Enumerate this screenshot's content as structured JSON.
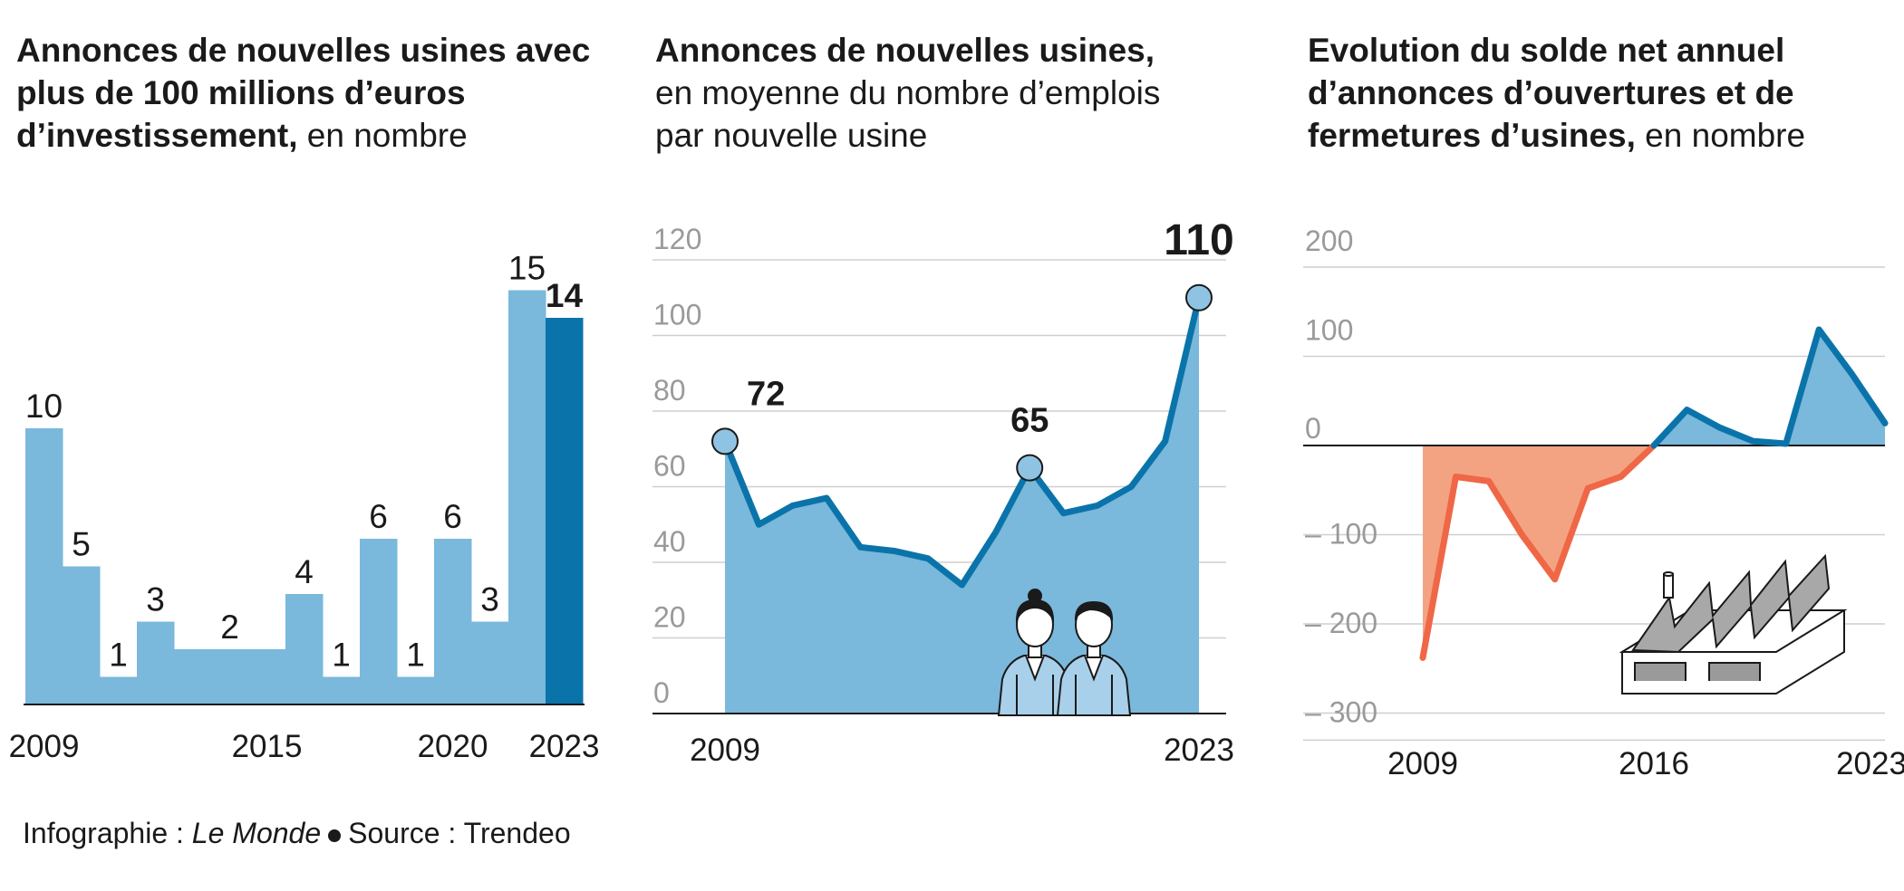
{
  "colors": {
    "bar_light": "#7ab8dc",
    "bar_dark": "#0a74aa",
    "line_blue": "#0a74aa",
    "area_blue": "#7ab8dc",
    "marker_fill": "#8ec3e3",
    "negative_line": "#ef6746",
    "negative_area": "#f3a382",
    "grid": "#cfcfcf",
    "axis": "#1a1a1a",
    "tick_text": "#9a9a9a"
  },
  "charts": {
    "bars": {
      "title_bold": "Annonces de nouvelles usines avec plus de 100 millions d’euros d’investissement,",
      "title_normal": " en nombre",
      "chart_data": {
        "type": "bar",
        "categories": [
          "2009",
          "2010",
          "2011",
          "2012",
          "2013",
          "2014",
          "2015",
          "2016",
          "2017",
          "2018",
          "2019",
          "2020",
          "2021",
          "2022",
          "2023"
        ],
        "values": [
          10,
          5,
          1,
          3,
          2,
          2,
          2,
          4,
          1,
          6,
          1,
          6,
          3,
          15,
          14
        ],
        "value_labels": [
          "10",
          "5",
          "1",
          "3",
          "",
          "2",
          "",
          "4",
          "1",
          "6",
          "1",
          "6",
          "3",
          "15",
          "14"
        ],
        "x_tick_labels": [
          {
            "category": "2009",
            "label": "2009"
          },
          {
            "category": "2015",
            "label": "2015"
          },
          {
            "category": "2020",
            "label": "2020"
          },
          {
            "category": "2023",
            "label": "2023"
          }
        ],
        "highlight": "2023",
        "ylim": [
          0,
          16
        ],
        "xlabel": "",
        "ylabel": ""
      }
    },
    "jobs": {
      "title_bold": "Annonces de nouvelles usines,",
      "title_normal": "en moyenne du nombre d’emplois par nouvelle usine",
      "chart_data": {
        "type": "area",
        "x": [
          2009,
          2010,
          2011,
          2012,
          2013,
          2014,
          2015,
          2016,
          2017,
          2018,
          2019,
          2020,
          2021,
          2022,
          2023
        ],
        "y": [
          72,
          50,
          55,
          57,
          44,
          43,
          41,
          34,
          48,
          65,
          53,
          55,
          60,
          72,
          110
        ],
        "y_ticks": [
          "120",
          "100",
          "80",
          "60",
          "40",
          "20",
          "0"
        ],
        "y_tick_values": [
          120,
          100,
          80,
          60,
          40,
          20,
          0
        ],
        "ylim": [
          0,
          120
        ],
        "annotations": [
          {
            "x": 2009,
            "y": 72,
            "label": "72"
          },
          {
            "x": 2018,
            "y": 65,
            "label": "65"
          },
          {
            "x": 2023,
            "y": 110,
            "label": "110"
          }
        ],
        "x_tick_labels": [
          {
            "x": 2009,
            "label": "2009"
          },
          {
            "x": 2023,
            "label": "2023"
          }
        ],
        "grid": true,
        "xlabel": "",
        "ylabel": ""
      },
      "illustration": "two-workers-icon"
    },
    "balance": {
      "title_bold": "Evolution du solde net annuel d’annonces d’ouvertures et de fermetures d’usines,",
      "title_normal": " en nombre",
      "chart_data": {
        "type": "area",
        "x": [
          2009,
          2010,
          2011,
          2012,
          2013,
          2014,
          2015,
          2016,
          2017,
          2018,
          2019,
          2020,
          2021,
          2022,
          2023
        ],
        "y": [
          -238,
          -35,
          -40,
          -100,
          -150,
          -48,
          -35,
          0,
          40,
          20,
          5,
          2,
          130,
          80,
          25
        ],
        "y_ticks": [
          "200",
          "100",
          "0",
          "– 100",
          "– 200",
          "– 300"
        ],
        "y_tick_values": [
          200,
          100,
          0,
          -100,
          -200,
          -300
        ],
        "ylim": [
          -310,
          200
        ],
        "x_tick_labels": [
          {
            "x": 2009,
            "label": "2009"
          },
          {
            "x": 2016,
            "label": "2016"
          },
          {
            "x": 2023,
            "label": "2023"
          }
        ],
        "grid": true,
        "xlabel": "",
        "ylabel": ""
      },
      "illustration": "factory-icon"
    }
  },
  "footer": {
    "prefix": "Infographie : ",
    "brand": "Le Monde",
    "source": "Source : Trendeo"
  }
}
